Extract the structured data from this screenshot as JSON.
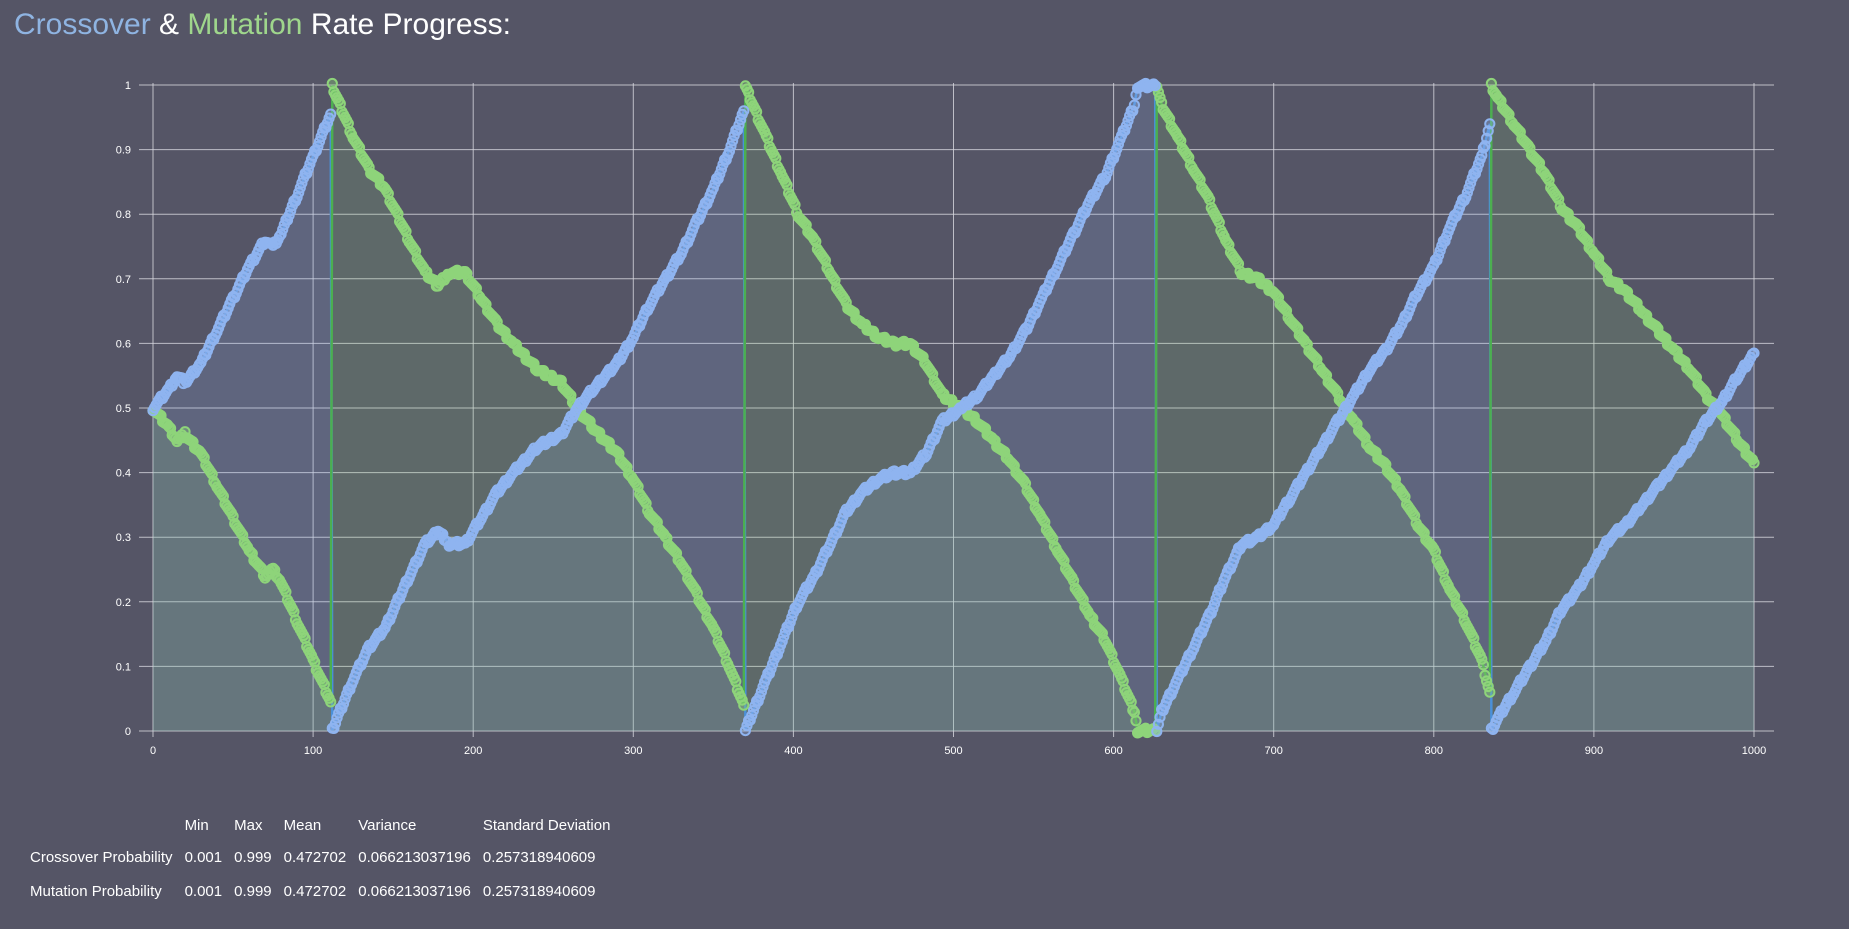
{
  "title": {
    "crossover": "Crossover",
    "amp": "&",
    "mutation": "Mutation",
    "rest": "Rate Progress:"
  },
  "colors": {
    "background": "#555566",
    "crossover": "#8fb4f0",
    "crossover_line": "#4a90d9",
    "mutation": "#8ed47a",
    "mutation_line": "#4caf50",
    "grid": "#d8d8e0"
  },
  "stats": {
    "headers": [
      "",
      "Min",
      "Max",
      "Mean",
      "Variance",
      "Standard Deviation"
    ],
    "rows": [
      {
        "label": "Crossover Probability",
        "min": "0.001",
        "max": "0.999",
        "mean": "0.472702",
        "variance": "0.066213037196",
        "std": "0.257318940609"
      },
      {
        "label": "Mutation Probability",
        "min": "0.001",
        "max": "0.999",
        "mean": "0.472702",
        "variance": "0.066213037196",
        "std": "0.257318940609"
      }
    ]
  },
  "chart_data": {
    "type": "area",
    "title": "",
    "xlabel": "",
    "ylabel": "",
    "xlim": [
      0,
      1000
    ],
    "ylim": [
      0,
      1
    ],
    "x_ticks": [
      0,
      100,
      200,
      300,
      400,
      500,
      600,
      700,
      800,
      900,
      1000
    ],
    "y_ticks": [
      0,
      0.1,
      0.2,
      0.3,
      0.4,
      0.5,
      0.6,
      0.7,
      0.8,
      0.9,
      1
    ],
    "y_tick_labels": [
      "0",
      "0.1",
      "0.2",
      "0.3",
      "0.4",
      "0.5",
      "0.6",
      "0.7",
      "0.8",
      "0.9",
      "1"
    ],
    "grid": true,
    "legend": "none",
    "marker": "hollow-circle",
    "series": [
      {
        "key": "crossover",
        "points": [
          [
            0,
            0.5
          ],
          [
            10,
            0.53
          ],
          [
            15,
            0.55
          ],
          [
            20,
            0.54
          ],
          [
            30,
            0.57
          ],
          [
            40,
            0.62
          ],
          [
            50,
            0.67
          ],
          [
            60,
            0.72
          ],
          [
            70,
            0.76
          ],
          [
            75,
            0.75
          ],
          [
            80,
            0.77
          ],
          [
            90,
            0.83
          ],
          [
            100,
            0.89
          ],
          [
            111,
            0.955
          ],
          [
            112,
            0.001
          ],
          [
            115,
            0.02
          ],
          [
            125,
            0.08
          ],
          [
            135,
            0.13
          ],
          [
            145,
            0.16
          ],
          [
            160,
            0.24
          ],
          [
            170,
            0.29
          ],
          [
            178,
            0.31
          ],
          [
            185,
            0.29
          ],
          [
            195,
            0.29
          ],
          [
            205,
            0.33
          ],
          [
            215,
            0.37
          ],
          [
            225,
            0.4
          ],
          [
            240,
            0.44
          ],
          [
            255,
            0.46
          ],
          [
            265,
            0.5
          ],
          [
            275,
            0.53
          ],
          [
            290,
            0.57
          ],
          [
            300,
            0.61
          ],
          [
            310,
            0.66
          ],
          [
            320,
            0.7
          ],
          [
            330,
            0.74
          ],
          [
            340,
            0.79
          ],
          [
            350,
            0.84
          ],
          [
            360,
            0.9
          ],
          [
            369,
            0.96
          ],
          [
            370,
            0.001
          ],
          [
            373,
            0.02
          ],
          [
            383,
            0.08
          ],
          [
            393,
            0.14
          ],
          [
            403,
            0.2
          ],
          [
            413,
            0.24
          ],
          [
            423,
            0.29
          ],
          [
            433,
            0.34
          ],
          [
            443,
            0.37
          ],
          [
            453,
            0.39
          ],
          [
            463,
            0.4
          ],
          [
            473,
            0.4
          ],
          [
            483,
            0.43
          ],
          [
            493,
            0.48
          ],
          [
            505,
            0.5
          ],
          [
            515,
            0.52
          ],
          [
            525,
            0.55
          ],
          [
            535,
            0.58
          ],
          [
            545,
            0.62
          ],
          [
            555,
            0.67
          ],
          [
            565,
            0.72
          ],
          [
            575,
            0.77
          ],
          [
            585,
            0.82
          ],
          [
            595,
            0.86
          ],
          [
            605,
            0.92
          ],
          [
            613,
            0.97
          ],
          [
            615,
            0.999
          ],
          [
            626,
            0.999
          ],
          [
            627,
            0.001
          ],
          [
            630,
            0.03
          ],
          [
            640,
            0.08
          ],
          [
            650,
            0.13
          ],
          [
            660,
            0.18
          ],
          [
            670,
            0.24
          ],
          [
            680,
            0.29
          ],
          [
            690,
            0.3
          ],
          [
            700,
            0.32
          ],
          [
            710,
            0.36
          ],
          [
            720,
            0.4
          ],
          [
            730,
            0.44
          ],
          [
            740,
            0.48
          ],
          [
            750,
            0.52
          ],
          [
            760,
            0.56
          ],
          [
            770,
            0.59
          ],
          [
            780,
            0.63
          ],
          [
            790,
            0.68
          ],
          [
            800,
            0.72
          ],
          [
            810,
            0.78
          ],
          [
            820,
            0.83
          ],
          [
            830,
            0.89
          ],
          [
            835,
            0.94
          ],
          [
            836,
            0.001
          ],
          [
            840,
            0.02
          ],
          [
            850,
            0.06
          ],
          [
            860,
            0.1
          ],
          [
            870,
            0.14
          ],
          [
            880,
            0.19
          ],
          [
            890,
            0.22
          ],
          [
            900,
            0.26
          ],
          [
            910,
            0.3
          ],
          [
            920,
            0.32
          ],
          [
            930,
            0.35
          ],
          [
            940,
            0.38
          ],
          [
            950,
            0.41
          ],
          [
            960,
            0.44
          ],
          [
            970,
            0.48
          ],
          [
            980,
            0.51
          ],
          [
            990,
            0.55
          ],
          [
            1000,
            0.585
          ]
        ]
      },
      {
        "key": "mutation",
        "points": [
          [
            0,
            0.5
          ],
          [
            10,
            0.47
          ],
          [
            15,
            0.45
          ],
          [
            20,
            0.46
          ],
          [
            30,
            0.43
          ],
          [
            40,
            0.38
          ],
          [
            50,
            0.33
          ],
          [
            60,
            0.28
          ],
          [
            70,
            0.24
          ],
          [
            75,
            0.25
          ],
          [
            80,
            0.23
          ],
          [
            90,
            0.17
          ],
          [
            100,
            0.11
          ],
          [
            111,
            0.045
          ],
          [
            112,
            0.999
          ],
          [
            115,
            0.98
          ],
          [
            125,
            0.92
          ],
          [
            135,
            0.87
          ],
          [
            145,
            0.84
          ],
          [
            160,
            0.76
          ],
          [
            170,
            0.71
          ],
          [
            178,
            0.69
          ],
          [
            185,
            0.71
          ],
          [
            195,
            0.71
          ],
          [
            205,
            0.67
          ],
          [
            215,
            0.63
          ],
          [
            225,
            0.6
          ],
          [
            240,
            0.56
          ],
          [
            255,
            0.54
          ],
          [
            265,
            0.5
          ],
          [
            275,
            0.47
          ],
          [
            290,
            0.43
          ],
          [
            300,
            0.39
          ],
          [
            310,
            0.34
          ],
          [
            320,
            0.3
          ],
          [
            330,
            0.26
          ],
          [
            340,
            0.21
          ],
          [
            350,
            0.16
          ],
          [
            360,
            0.1
          ],
          [
            369,
            0.04
          ],
          [
            370,
            0.999
          ],
          [
            373,
            0.98
          ],
          [
            383,
            0.92
          ],
          [
            393,
            0.86
          ],
          [
            403,
            0.8
          ],
          [
            413,
            0.76
          ],
          [
            423,
            0.71
          ],
          [
            433,
            0.66
          ],
          [
            443,
            0.63
          ],
          [
            453,
            0.61
          ],
          [
            463,
            0.6
          ],
          [
            473,
            0.6
          ],
          [
            483,
            0.57
          ],
          [
            493,
            0.52
          ],
          [
            505,
            0.5
          ],
          [
            515,
            0.48
          ],
          [
            525,
            0.45
          ],
          [
            535,
            0.42
          ],
          [
            545,
            0.38
          ],
          [
            555,
            0.33
          ],
          [
            565,
            0.28
          ],
          [
            575,
            0.23
          ],
          [
            585,
            0.18
          ],
          [
            595,
            0.14
          ],
          [
            605,
            0.08
          ],
          [
            613,
            0.03
          ],
          [
            615,
            0.001
          ],
          [
            626,
            0.001
          ],
          [
            627,
            0.999
          ],
          [
            630,
            0.97
          ],
          [
            640,
            0.92
          ],
          [
            650,
            0.87
          ],
          [
            660,
            0.82
          ],
          [
            670,
            0.76
          ],
          [
            680,
            0.71
          ],
          [
            690,
            0.7
          ],
          [
            700,
            0.68
          ],
          [
            710,
            0.64
          ],
          [
            720,
            0.6
          ],
          [
            730,
            0.56
          ],
          [
            740,
            0.52
          ],
          [
            750,
            0.48
          ],
          [
            760,
            0.44
          ],
          [
            770,
            0.41
          ],
          [
            780,
            0.37
          ],
          [
            790,
            0.32
          ],
          [
            800,
            0.28
          ],
          [
            810,
            0.22
          ],
          [
            820,
            0.17
          ],
          [
            830,
            0.11
          ],
          [
            835,
            0.06
          ],
          [
            836,
            0.999
          ],
          [
            840,
            0.98
          ],
          [
            850,
            0.94
          ],
          [
            860,
            0.9
          ],
          [
            870,
            0.86
          ],
          [
            880,
            0.81
          ],
          [
            890,
            0.78
          ],
          [
            900,
            0.74
          ],
          [
            910,
            0.7
          ],
          [
            920,
            0.68
          ],
          [
            930,
            0.65
          ],
          [
            940,
            0.62
          ],
          [
            950,
            0.59
          ],
          [
            960,
            0.56
          ],
          [
            970,
            0.52
          ],
          [
            980,
            0.49
          ],
          [
            990,
            0.45
          ],
          [
            1000,
            0.415
          ]
        ]
      }
    ]
  }
}
